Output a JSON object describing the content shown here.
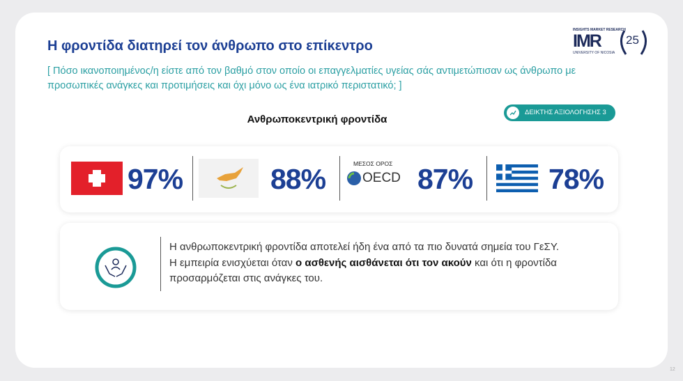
{
  "header": {
    "title": "Η φροντίδα διατηρεί τον άνθρωπο στο επίκεντρο",
    "question": "[ Πόσο ικανοποιημένος/η είστε από τον βαθμό στον οποίο οι επαγγελματίες υγείας σάς αντιμετώπισαν ως άνθρωπο με προσωπικές ανάγκες και προτιμήσεις και όχι μόνο ως ένα ιατρικό περιστατικό; ]"
  },
  "logo": {
    "tagline": "INSIGHTS MARKET RESEARCH",
    "name": "IMR",
    "university": "UNIVERSITY OF NICOSIA",
    "years": "25"
  },
  "section": {
    "heading": "Ανθρωποκεντρική φροντίδα",
    "badge": "ΔΕΙΚΤΗΣ ΑΞΙΟΛΟΓΗΣΗΣ 3"
  },
  "stats": [
    {
      "value": "97%"
    },
    {
      "value": "88%"
    },
    {
      "caption": "ΜΕΣΟΣ ΟΡΟΣ",
      "logo": "OECD",
      "value": "87%"
    },
    {
      "value": "78%"
    }
  ],
  "insight": {
    "body": [
      "Η ανθρωποκεντρική φροντίδα αποτελεί ήδη ένα από τα πιο δυνατά σημεία του ΓεΣΥ. Η εμπειρία ενισχύεται όταν ",
      "ο ασθενής αισθάνεται ότι τον ακούν",
      " και ότι η φροντίδα προσαρμόζεται στις ανάγκες του."
    ]
  },
  "footer": {
    "page": "12"
  }
}
